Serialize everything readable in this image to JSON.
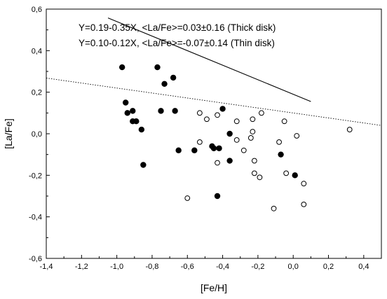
{
  "chart_data": {
    "type": "scatter",
    "xlabel": "[Fe/H]",
    "ylabel": "[La/Fe]",
    "xlim": [
      -1.4,
      0.5
    ],
    "ylim": [
      -0.6,
      0.6
    ],
    "x_ticks": [
      -1.4,
      -1.2,
      -1.0,
      -0.8,
      -0.6,
      -0.4,
      -0.2,
      0.0,
      0.2,
      0.4
    ],
    "y_ticks": [
      -0.6,
      -0.4,
      -0.2,
      0.0,
      0.2,
      0.4,
      0.6
    ],
    "x_tick_labels": [
      "-1,4",
      "-1,2",
      "-1,0",
      "-0,8",
      "-0,6",
      "-0,4",
      "-0,2",
      "0,0",
      "0,2",
      "0,4"
    ],
    "y_tick_labels": [
      "-0,6",
      "-0,4",
      "-0,2",
      "0,0",
      "0,2",
      "0,4",
      "0,6"
    ],
    "grid": false,
    "annotations": [
      "Y=0.19-0.35X,  <La/Fe>=0.03±0.16 (Thick disk)",
      "Y=0.10-0.12X,  <La/Fe>=-0.07±0.14 (Thin disk)"
    ],
    "series": [
      {
        "marker": "filled-circle",
        "color": "#000000",
        "points": [
          [
            -0.97,
            0.32
          ],
          [
            -0.95,
            0.15
          ],
          [
            -0.94,
            0.1
          ],
          [
            -0.91,
            0.11
          ],
          [
            -0.91,
            0.06
          ],
          [
            -0.89,
            0.06
          ],
          [
            -0.86,
            0.02
          ],
          [
            -0.85,
            -0.15
          ],
          [
            -0.77,
            0.32
          ],
          [
            -0.75,
            0.11
          ],
          [
            -0.73,
            0.24
          ],
          [
            -0.68,
            0.27
          ],
          [
            -0.67,
            0.11
          ],
          [
            -0.65,
            -0.08
          ],
          [
            -0.56,
            -0.08
          ],
          [
            -0.46,
            -0.06
          ],
          [
            -0.45,
            -0.07
          ],
          [
            -0.43,
            -0.3
          ],
          [
            -0.42,
            -0.07
          ],
          [
            -0.4,
            0.12
          ],
          [
            -0.36,
            0.0
          ],
          [
            -0.36,
            -0.13
          ],
          [
            -0.07,
            -0.1
          ],
          [
            0.01,
            -0.2
          ]
        ]
      },
      {
        "marker": "open-circle",
        "color": "#000000",
        "points": [
          [
            -0.6,
            -0.31
          ],
          [
            -0.53,
            0.1
          ],
          [
            -0.53,
            -0.04
          ],
          [
            -0.49,
            0.07
          ],
          [
            -0.43,
            0.09
          ],
          [
            -0.43,
            -0.14
          ],
          [
            -0.32,
            0.06
          ],
          [
            -0.32,
            -0.03
          ],
          [
            -0.28,
            -0.08
          ],
          [
            -0.24,
            -0.02
          ],
          [
            -0.23,
            0.07
          ],
          [
            -0.23,
            0.01
          ],
          [
            -0.22,
            -0.13
          ],
          [
            -0.22,
            -0.19
          ],
          [
            -0.19,
            -0.21
          ],
          [
            -0.18,
            0.1
          ],
          [
            -0.11,
            -0.36
          ],
          [
            -0.08,
            -0.04
          ],
          [
            -0.05,
            0.06
          ],
          [
            -0.04,
            -0.19
          ],
          [
            0.02,
            -0.01
          ],
          [
            0.06,
            -0.24
          ],
          [
            0.06,
            -0.34
          ],
          [
            0.32,
            0.02
          ]
        ]
      }
    ],
    "fit_lines": [
      {
        "style": "solid",
        "x_range": [
          -1.05,
          0.1
        ],
        "intercept": 0.19,
        "slope": -0.35
      },
      {
        "style": "dotted",
        "x_range": [
          -1.4,
          0.5
        ],
        "intercept": 0.1,
        "slope": -0.12
      }
    ]
  }
}
